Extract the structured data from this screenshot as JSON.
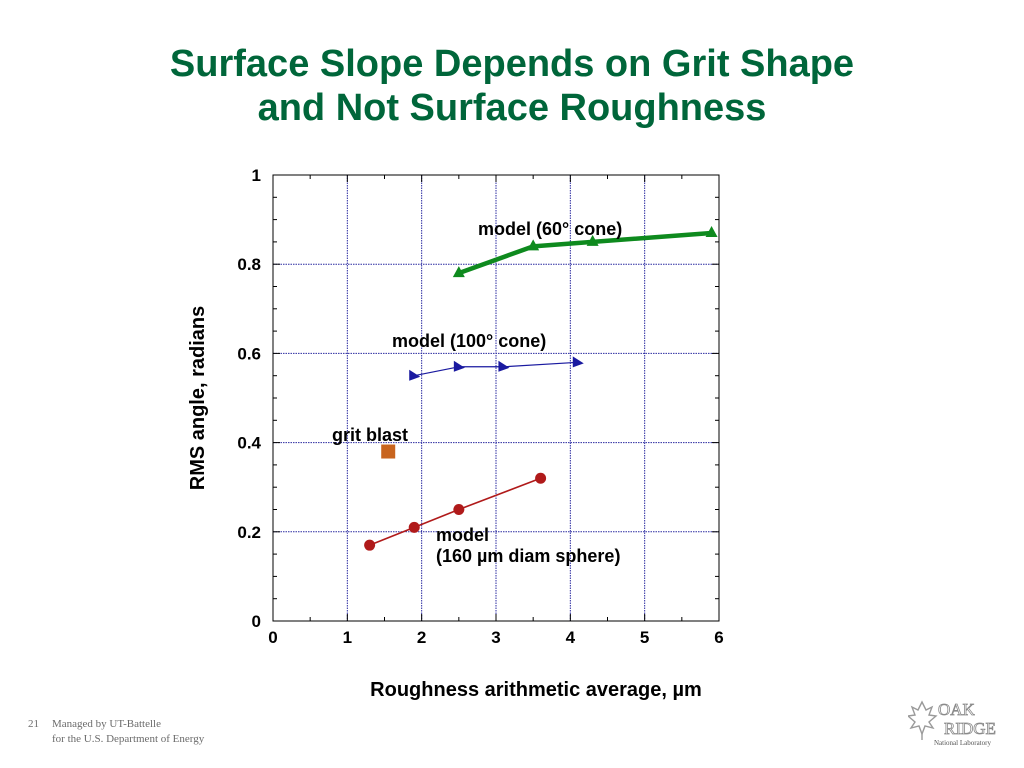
{
  "slide": {
    "title_line1": "Surface Slope Depends on Grit Shape",
    "title_line2": "and Not Surface Roughness",
    "page_number": "21",
    "footer_line1": "Managed by UT-Battelle",
    "footer_line2": "for the U.S. Department of Energy",
    "logo": {
      "line1": "OAK",
      "line2": "RIDGE",
      "line3": "National Laboratory",
      "icon": "tree-leaf-icon"
    }
  },
  "chart_data": {
    "type": "line",
    "title": "",
    "xlabel": "Roughness arithmetic average, µm",
    "ylabel": "RMS angle, radians",
    "xlim": [
      0,
      6
    ],
    "ylim": [
      0,
      1
    ],
    "x_ticks": [
      "0",
      "1",
      "2",
      "3",
      "4",
      "5",
      "6"
    ],
    "y_ticks": [
      "0",
      "0.2",
      "0.4",
      "0.6",
      "0.8",
      "1"
    ],
    "grid": true,
    "series": [
      {
        "name": "model (60° cone)",
        "color": "#0e8a1e",
        "marker": "triangle",
        "line_width": "thick",
        "x": [
          2.5,
          3.5,
          4.3,
          5.9
        ],
        "y": [
          0.78,
          0.84,
          0.85,
          0.87
        ]
      },
      {
        "name": "model (100° cone)",
        "color": "#1a1aa0",
        "marker": "right-triangle",
        "line_width": "thin",
        "x": [
          1.9,
          2.5,
          3.1,
          4.1
        ],
        "y": [
          0.55,
          0.57,
          0.57,
          0.58
        ]
      },
      {
        "name": "grit blast",
        "color": "#c8641e",
        "marker": "square",
        "line_width": "none",
        "x": [
          1.55
        ],
        "y": [
          0.38
        ]
      },
      {
        "name": "model (160 µm diam sphere)",
        "color": "#b01a1a",
        "marker": "circle",
        "line_width": "medium",
        "x": [
          1.3,
          1.9,
          2.5,
          3.6
        ],
        "y": [
          0.17,
          0.21,
          0.25,
          0.32
        ]
      }
    ],
    "annotations": {
      "cone60": "model (60° cone)",
      "cone100": "model (100° cone)",
      "grit": "grit blast",
      "sphere_line1": "model",
      "sphere_line2": "(160 µm diam sphere)"
    }
  }
}
